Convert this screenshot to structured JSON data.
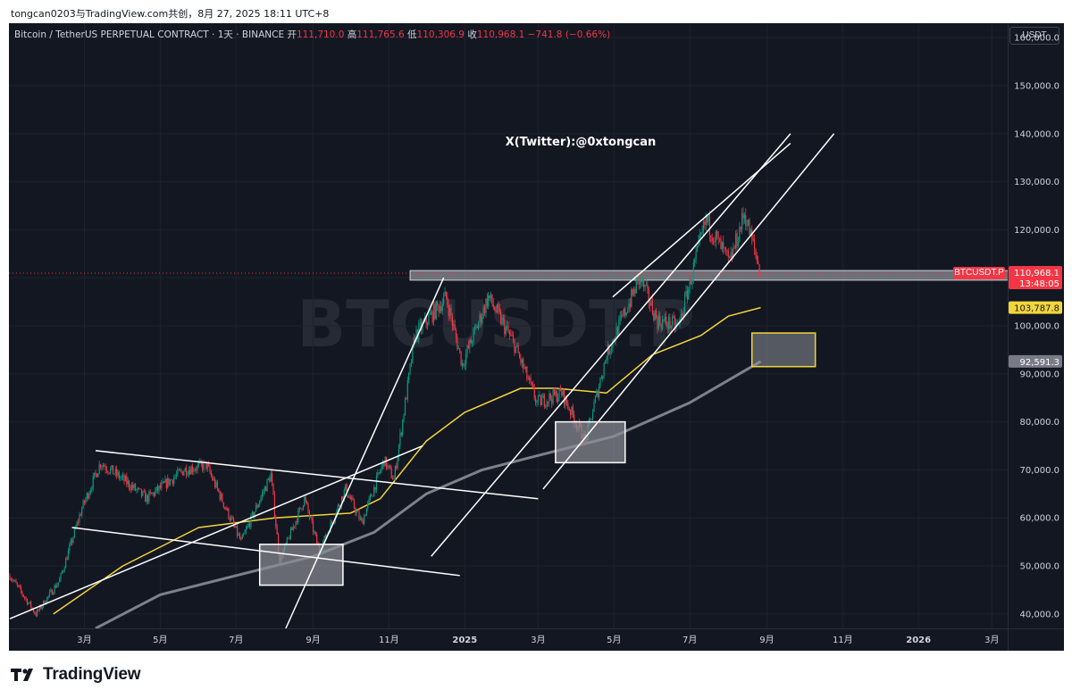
{
  "header": {
    "caption": "tongcan0203与TradingView.com共创，8月 27, 2025 18:11 UTC+8"
  },
  "legend": {
    "instrument": "Bitcoin / TetherUS PERPETUAL CONTRACT · 1天 · BINANCE",
    "open_label": "开",
    "open_value": "111,710.0",
    "high_label": "高",
    "high_value": "111,765.6",
    "low_label": "低",
    "low_value": "110,306.9",
    "close_label": "收",
    "close_value": "110,968.1",
    "change_value": "−741.8 (−0.66%)"
  },
  "watermark": "BTCUSDT.P",
  "annotation": "X(Twitter):@0xtongcan",
  "price_axis": {
    "unit": "USDT"
  },
  "price_tags": {
    "symbol": "BTCUSDT.P",
    "last_price": "110,968.1",
    "countdown": "13:48:05",
    "ma_yellow": "103,787.8",
    "ma_gray": "92,591.3"
  },
  "colors": {
    "background": "#131722",
    "up": "#089981",
    "down": "#f23645",
    "ma_yellow": "#f2d63a",
    "ma_gray": "#8a8d96",
    "trendline": "#ffffff"
  },
  "brand": {
    "name": "TradingView"
  },
  "chart_data": {
    "type": "candlestick",
    "interval": "1D",
    "y_axis": {
      "min": 37000,
      "max": 163000,
      "ticks": [
        "40,000.0",
        "50,000.0",
        "60,000.0",
        "70,000.0",
        "80,000.0",
        "90,000.0",
        "100,000.0",
        "110,000.0",
        "120,000.0",
        "130,000.0",
        "140,000.0",
        "150,000.0",
        "160,000.0"
      ]
    },
    "x_axis": {
      "ticks": [
        {
          "label": "3月",
          "date": "2024-03-01"
        },
        {
          "label": "5月",
          "date": "2024-05-01"
        },
        {
          "label": "7月",
          "date": "2024-07-01"
        },
        {
          "label": "9月",
          "date": "2024-09-01"
        },
        {
          "label": "11月",
          "date": "2024-11-01"
        },
        {
          "label": "2025",
          "date": "2025-01-01"
        },
        {
          "label": "3月",
          "date": "2025-03-01"
        },
        {
          "label": "5月",
          "date": "2025-05-01"
        },
        {
          "label": "7月",
          "date": "2025-07-01"
        },
        {
          "label": "9月",
          "date": "2025-09-01"
        },
        {
          "label": "11月",
          "date": "2025-11-01"
        },
        {
          "label": "2026",
          "date": "2026-01-01"
        },
        {
          "label": "3月",
          "date": "2026-03-01"
        }
      ]
    },
    "price_path": [
      {
        "date": "2024-01-01",
        "close": 48000
      },
      {
        "date": "2024-01-22",
        "close": 40000
      },
      {
        "date": "2024-02-10",
        "close": 47000
      },
      {
        "date": "2024-02-28",
        "close": 62000
      },
      {
        "date": "2024-03-14",
        "close": 71500
      },
      {
        "date": "2024-04-01",
        "close": 68000
      },
      {
        "date": "2024-04-20",
        "close": 64000
      },
      {
        "date": "2024-05-20",
        "close": 70000
      },
      {
        "date": "2024-06-07",
        "close": 71000
      },
      {
        "date": "2024-07-05",
        "close": 55000
      },
      {
        "date": "2024-07-29",
        "close": 69000
      },
      {
        "date": "2024-08-05",
        "close": 51000
      },
      {
        "date": "2024-08-25",
        "close": 64000
      },
      {
        "date": "2024-09-06",
        "close": 53000
      },
      {
        "date": "2024-09-27",
        "close": 66000
      },
      {
        "date": "2024-10-10",
        "close": 59000
      },
      {
        "date": "2024-10-28",
        "close": 72000
      },
      {
        "date": "2024-11-05",
        "close": 68000
      },
      {
        "date": "2024-11-22",
        "close": 98000
      },
      {
        "date": "2024-12-17",
        "close": 106000
      },
      {
        "date": "2024-12-30",
        "close": 92000
      },
      {
        "date": "2025-01-20",
        "close": 106000
      },
      {
        "date": "2025-02-10",
        "close": 96000
      },
      {
        "date": "2025-02-28",
        "close": 84000
      },
      {
        "date": "2025-03-20",
        "close": 86000
      },
      {
        "date": "2025-04-08",
        "close": 76000
      },
      {
        "date": "2025-04-25",
        "close": 94000
      },
      {
        "date": "2025-05-22",
        "close": 110000
      },
      {
        "date": "2025-06-05",
        "close": 101000
      },
      {
        "date": "2025-06-22",
        "close": 100000
      },
      {
        "date": "2025-07-14",
        "close": 122000
      },
      {
        "date": "2025-08-02",
        "close": 113000
      },
      {
        "date": "2025-08-14",
        "close": 123500
      },
      {
        "date": "2025-08-27",
        "close": 110968.1
      }
    ],
    "moving_averages": [
      {
        "color": "yellow",
        "points": [
          {
            "date": "2024-02-05",
            "close": 40000
          },
          {
            "date": "2024-04-01",
            "close": 50000
          },
          {
            "date": "2024-06-01",
            "close": 58000
          },
          {
            "date": "2024-08-01",
            "close": 60000
          },
          {
            "date": "2024-10-01",
            "close": 61000
          },
          {
            "date": "2024-10-25",
            "close": 64000
          },
          {
            "date": "2024-12-01",
            "close": 76000
          },
          {
            "date": "2025-01-01",
            "close": 82000
          },
          {
            "date": "2025-02-15",
            "close": 87000
          },
          {
            "date": "2025-03-15",
            "close": 87000
          },
          {
            "date": "2025-04-25",
            "close": 86000
          },
          {
            "date": "2025-06-01",
            "close": 94000
          },
          {
            "date": "2025-07-10",
            "close": 98000
          },
          {
            "date": "2025-08-01",
            "close": 102000
          },
          {
            "date": "2025-08-27",
            "close": 103787.8
          }
        ]
      },
      {
        "color": "gray",
        "points": [
          {
            "date": "2024-03-10",
            "close": 37000
          },
          {
            "date": "2024-05-01",
            "close": 44000
          },
          {
            "date": "2024-07-01",
            "close": 48000
          },
          {
            "date": "2024-09-01",
            "close": 52000
          },
          {
            "date": "2024-10-20",
            "close": 57000
          },
          {
            "date": "2024-12-01",
            "close": 65000
          },
          {
            "date": "2025-01-15",
            "close": 70000
          },
          {
            "date": "2025-03-01",
            "close": 73000
          },
          {
            "date": "2025-05-01",
            "close": 77000
          },
          {
            "date": "2025-07-01",
            "close": 84000
          },
          {
            "date": "2025-08-27",
            "close": 92591.3
          }
        ]
      }
    ],
    "horizontal_zone": {
      "start": "2024-11-18",
      "end": "2026-04-10",
      "low": 109500,
      "high": 111500
    },
    "trendlines": [
      {
        "from": {
          "date": "2024-01-01",
          "close": 39000
        },
        "to": {
          "date": "2024-11-28",
          "close": 75000
        }
      },
      {
        "from": {
          "date": "2024-02-20",
          "close": 58000
        },
        "to": {
          "date": "2024-12-28",
          "close": 48000
        }
      },
      {
        "from": {
          "date": "2024-03-10",
          "close": 74000
        },
        "to": {
          "date": "2025-03-01",
          "close": 64000
        }
      },
      {
        "from": {
          "date": "2024-08-10",
          "close": 37000
        },
        "to": {
          "date": "2024-12-15",
          "close": 110000
        }
      },
      {
        "from": {
          "date": "2024-12-05",
          "close": 52000
        },
        "to": {
          "date": "2025-09-20",
          "close": 140000
        }
      },
      {
        "from": {
          "date": "2025-03-05",
          "close": 66000
        },
        "to": {
          "date": "2025-10-25",
          "close": 140000
        }
      },
      {
        "from": {
          "date": "2025-04-30",
          "close": 106000
        },
        "to": {
          "date": "2025-09-20",
          "close": 138000
        }
      }
    ],
    "boxes": [
      {
        "start": "2024-07-20",
        "end": "2024-09-25",
        "low": 46000,
        "high": 54500,
        "style": "gray"
      },
      {
        "start": "2025-03-15",
        "end": "2025-05-10",
        "low": 71500,
        "high": 80000,
        "style": "gray"
      },
      {
        "start": "2025-08-20",
        "end": "2025-10-10",
        "low": 91500,
        "high": 98500,
        "style": "yellow"
      }
    ]
  }
}
